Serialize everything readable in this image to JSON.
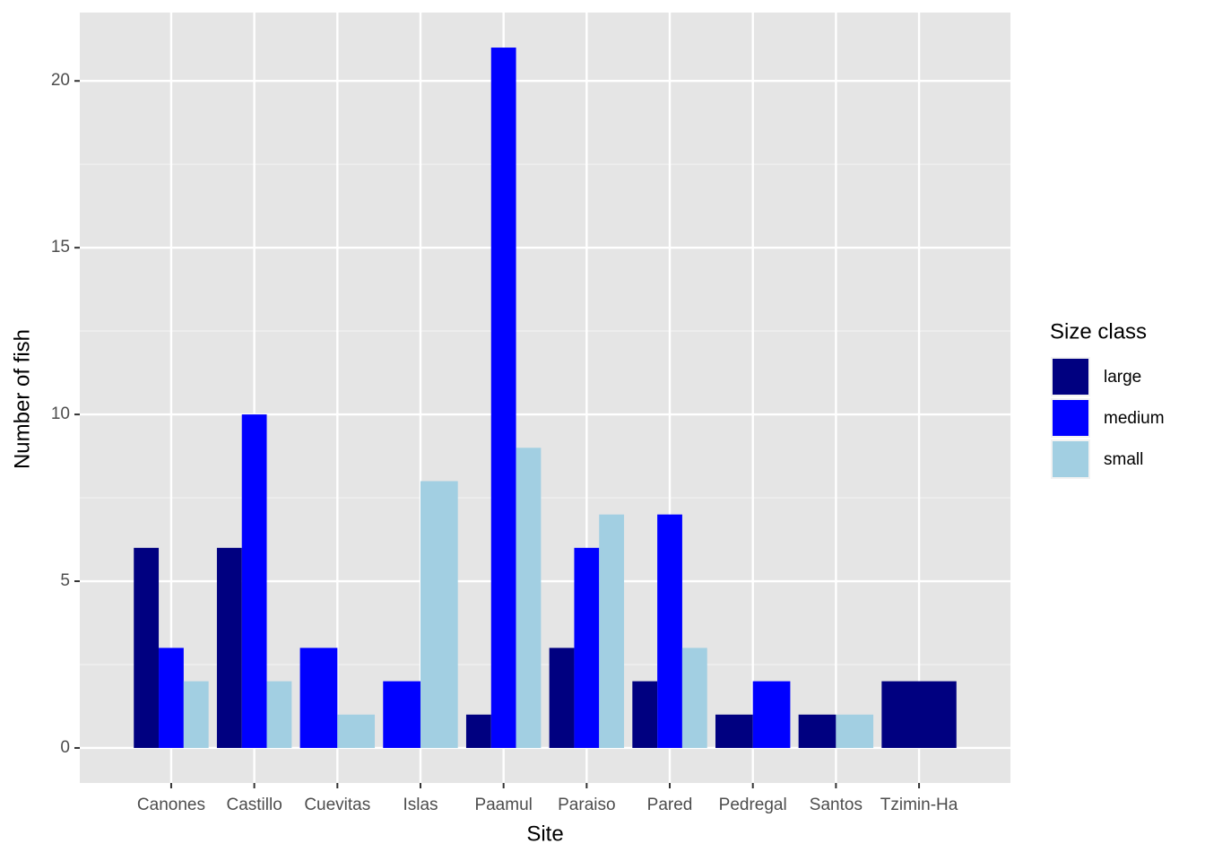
{
  "chart_data": {
    "type": "bar",
    "x_label": "Site",
    "y_label": "Number of fish",
    "legend_title": "Size class",
    "legend_position": "right",
    "categories": [
      "Canones",
      "Castillo",
      "Cuevitas",
      "Islas",
      "Paamul",
      "Paraiso",
      "Pared",
      "Pedregal",
      "Santos",
      "Tzimin-Ha"
    ],
    "series": [
      {
        "name": "large",
        "color": "#000080",
        "values": [
          6,
          6,
          null,
          null,
          1,
          3,
          2,
          1,
          1,
          2
        ]
      },
      {
        "name": "medium",
        "color": "#0000ff",
        "values": [
          3,
          10,
          3,
          2,
          21,
          6,
          7,
          2,
          null,
          null
        ]
      },
      {
        "name": "small",
        "color": "#a2cfe2",
        "values": [
          2,
          2,
          1,
          8,
          9,
          7,
          3,
          null,
          1,
          null
        ]
      }
    ],
    "ylim": [
      -1.05,
      22.05
    ],
    "yticks": [
      0,
      5,
      10,
      15,
      20
    ],
    "y_minor_ticks": [
      2.5,
      7.5,
      12.5,
      17.5
    ],
    "grid": true
  }
}
